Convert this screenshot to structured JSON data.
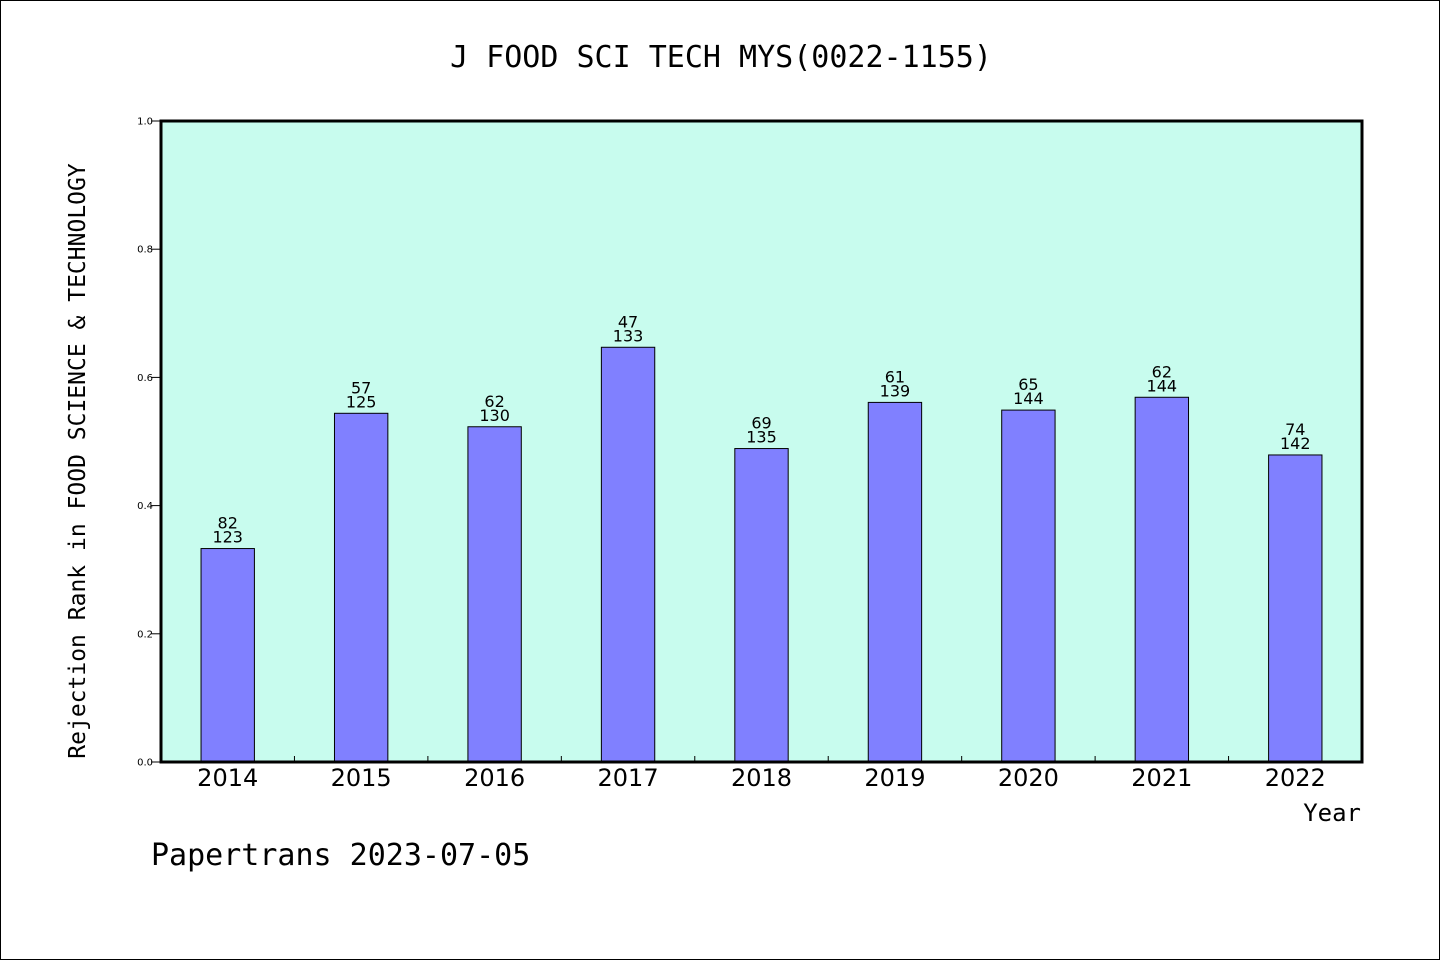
{
  "colors": {
    "plot_background": "#c8fcee",
    "bar_fill": "#8080ff",
    "bar_stroke": "#000000"
  },
  "footer": "Papertrans 2023-07-05",
  "chart_data": {
    "type": "bar",
    "title": "J FOOD SCI TECH MYS(0022-1155)",
    "xlabel": "Year",
    "ylabel": "Rejection Rank in FOOD SCIENCE & TECHNOLOGY",
    "ylim": [
      0,
      1
    ],
    "yticks": [
      "0.0",
      "0.2",
      "0.4",
      "0.6",
      "0.8",
      "1.0"
    ],
    "grid": false,
    "categories": [
      "2014",
      "2015",
      "2016",
      "2017",
      "2018",
      "2019",
      "2020",
      "2021",
      "2022"
    ],
    "values": [
      0.333,
      0.544,
      0.523,
      0.647,
      0.489,
      0.561,
      0.549,
      0.569,
      0.479
    ],
    "ranks": [
      "82",
      "57",
      "62",
      "47",
      "69",
      "61",
      "65",
      "62",
      "74"
    ],
    "totals": [
      "123",
      "125",
      "130",
      "133",
      "135",
      "139",
      "144",
      "144",
      "142"
    ]
  }
}
